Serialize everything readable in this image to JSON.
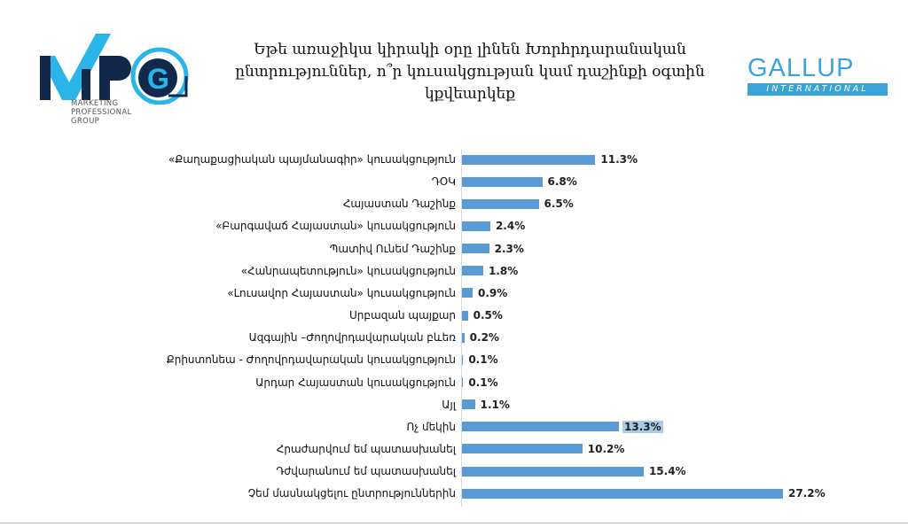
{
  "logos": {
    "left": {
      "text": "MPG",
      "subtitle": [
        "MARKETING",
        "PROFESSIONAL",
        "GROUP"
      ]
    },
    "right": {
      "text": "GALLUP",
      "subtitle": "INTERNATIONAL"
    }
  },
  "chart_data": {
    "type": "bar",
    "orientation": "horizontal",
    "title": "Եթե առաջիկա կիրակի օրը լինեն Խորհրդարանական ընտրություններ, ո՞ր կուսակցության կամ դաշինքի օգտին կքվեարկեք",
    "categories": [
      "«Քաղաքացիական պայմանագիր» կուսակցություն",
      "ԴՕԿ",
      "Հայաստան Դաշինք",
      "«Բարգավաճ Հայաստան»  կուսակցություն",
      "Պատիվ Ունեմ Դաշինք",
      "«Հանրապետություն»  կուսակցություն",
      "«Լուսավոր Հայաստան» կուսակցություն",
      "Սրբազան պայքար",
      "Ազգային –Ժողովրդավարական բևեռ",
      "Քրիստոնեա - Ժողովրդավարական կուսակցություն",
      "Արդար Հայաստան կուսակցություն",
      "Այլ",
      "Ոչ մեկին",
      "Հրաժարվում եմ պատասխանել",
      "Դժվարանում եմ պատասխանել",
      "Չեմ մասնակցելու ընտրություններին"
    ],
    "values": [
      11.3,
      6.8,
      6.5,
      2.4,
      2.3,
      1.8,
      0.9,
      0.5,
      0.2,
      0.1,
      0.1,
      1.1,
      13.3,
      10.2,
      15.4,
      27.2
    ],
    "data_labels": [
      "11.3%",
      "6.8%",
      "6.5%",
      "2.4%",
      "2.3%",
      "1.8%",
      "0.9%",
      "0.5%",
      "0.2%",
      "0.1%",
      "0.1%",
      "1.1%",
      "13.3%",
      "10.2%",
      "15.4%",
      "27.2%"
    ],
    "highlighted_label_index": 12,
    "bar_color": "#5b9bd5",
    "xlim": [
      0,
      30
    ],
    "grid": false,
    "legend": "none"
  }
}
